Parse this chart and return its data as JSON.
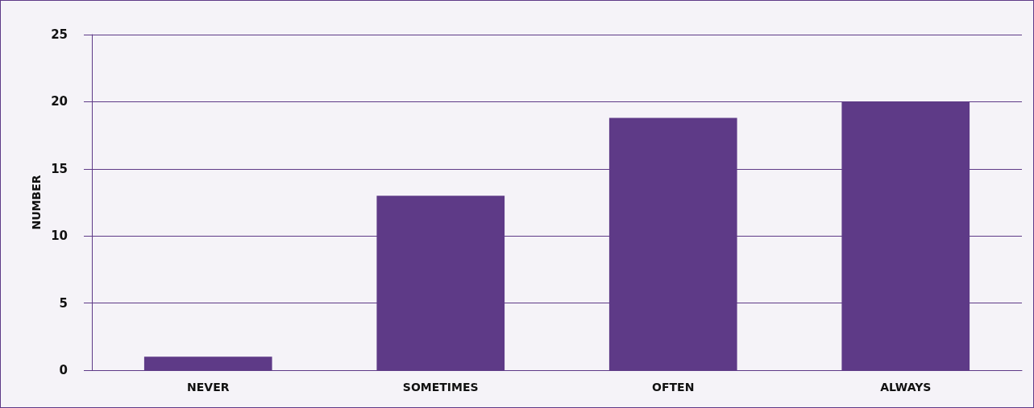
{
  "chart_data": {
    "type": "bar",
    "ylabel": "NUMBER",
    "categories": [
      "NEVER",
      "SOMETIMES",
      "OFTEN",
      "ALWAYS"
    ],
    "values": [
      1,
      13,
      18.8,
      20
    ],
    "color": "#5e3a87",
    "ylim": [
      0,
      25
    ],
    "yticks": [
      0,
      5,
      10,
      15,
      20,
      25
    ],
    "grid": "y"
  }
}
